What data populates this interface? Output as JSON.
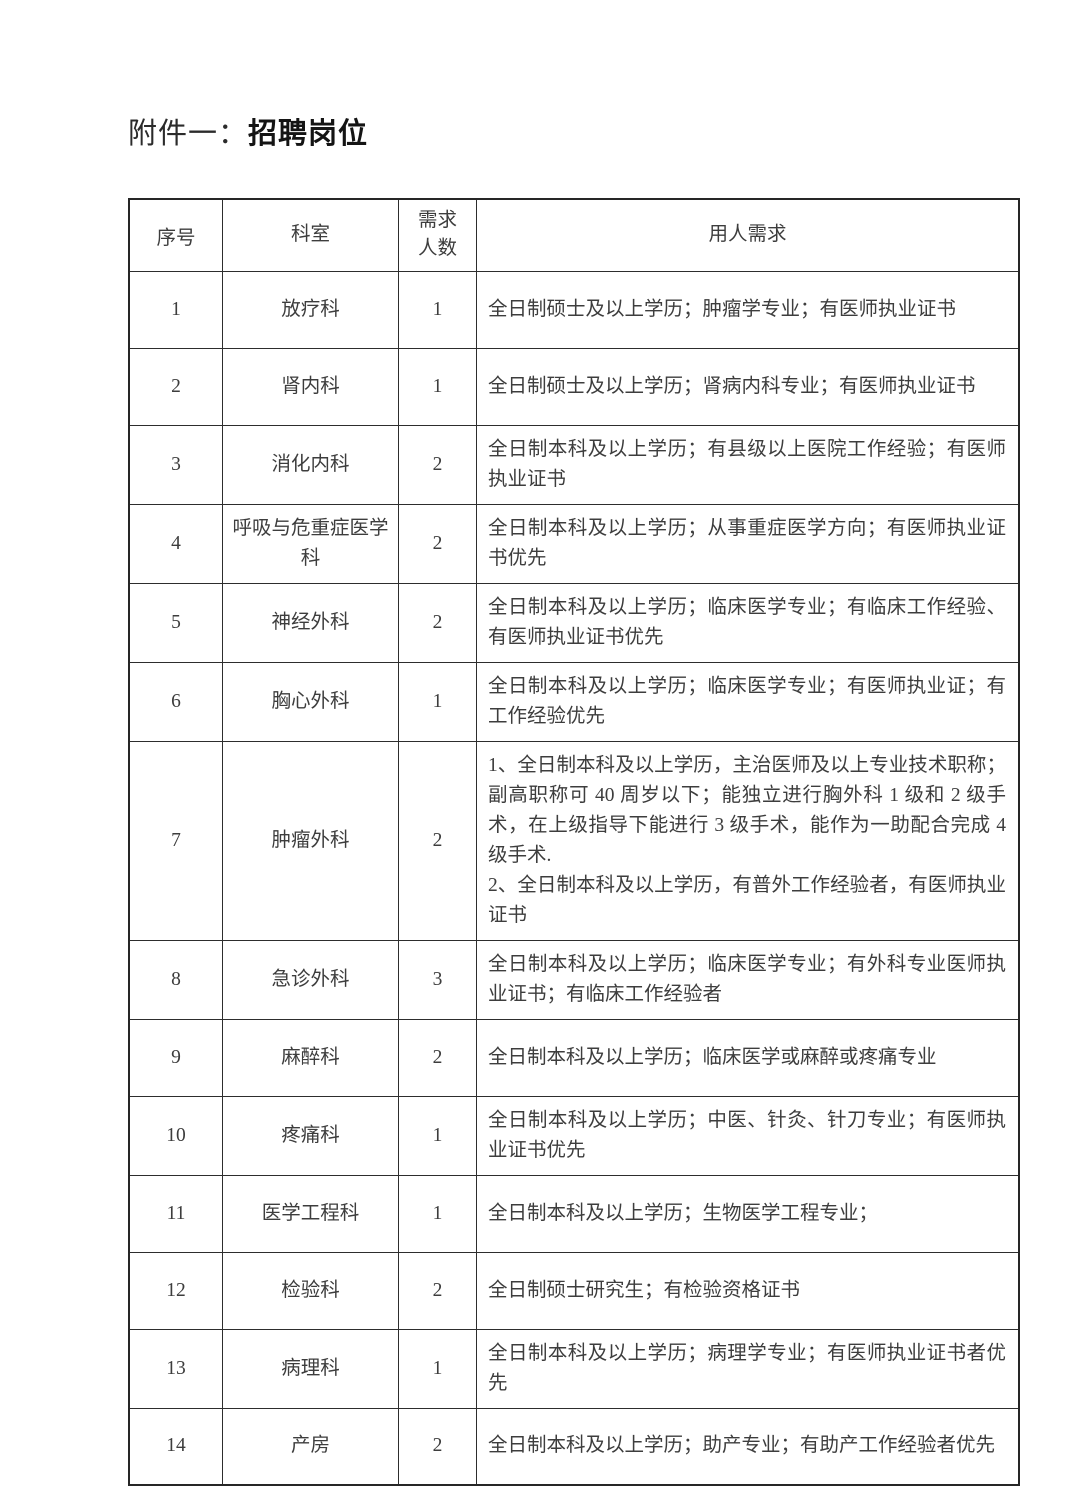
{
  "page": {
    "attachment_prefix": "附件一：",
    "title": "招聘岗位"
  },
  "table": {
    "headers": {
      "no": "序号",
      "dept": "科室",
      "count": "需求\n人数",
      "req": "用人需求"
    },
    "rows": [
      {
        "no": "1",
        "dept": "放疗科",
        "count": "1",
        "req": "全日制硕士及以上学历；肿瘤学专业；有医师执业证书"
      },
      {
        "no": "2",
        "dept": "肾内科",
        "count": "1",
        "req": "全日制硕士及以上学历；肾病内科专业；有医师执业证书"
      },
      {
        "no": "3",
        "dept": "消化内科",
        "count": "2",
        "req": "全日制本科及以上学历；有县级以上医院工作经验；有医师执业证书"
      },
      {
        "no": "4",
        "dept": "呼吸与危重症医学科",
        "count": "2",
        "req": "全日制本科及以上学历；从事重症医学方向；有医师执业证书优先"
      },
      {
        "no": "5",
        "dept": "神经外科",
        "count": "2",
        "req": "全日制本科及以上学历；临床医学专业；有临床工作经验、有医师执业证书优先"
      },
      {
        "no": "6",
        "dept": "胸心外科",
        "count": "1",
        "req": "全日制本科及以上学历；临床医学专业；有医师执业证；有工作经验优先"
      },
      {
        "no": "7",
        "dept": "肿瘤外科",
        "count": "2",
        "req": "1、全日制本科及以上学历，主治医师及以上专业技术职称；副高职称可 40 周岁以下；能独立进行胸外科 1 级和 2 级手术，在上级指导下能进行 3 级手术，能作为一助配合完成 4 级手术.\n2、全日制本科及以上学历，有普外工作经验者，有医师执业证书"
      },
      {
        "no": "8",
        "dept": "急诊外科",
        "count": "3",
        "req": "全日制本科及以上学历；临床医学专业；有外科专业医师执业证书；有临床工作经验者"
      },
      {
        "no": "9",
        "dept": "麻醉科",
        "count": "2",
        "req": "全日制本科及以上学历；临床医学或麻醉或疼痛专业"
      },
      {
        "no": "10",
        "dept": "疼痛科",
        "count": "1",
        "req": "全日制本科及以上学历；中医、针灸、针刀专业；有医师执业证书优先"
      },
      {
        "no": "11",
        "dept": "医学工程科",
        "count": "1",
        "req": "全日制本科及以上学历；生物医学工程专业；"
      },
      {
        "no": "12",
        "dept": "检验科",
        "count": "2",
        "req": "全日制硕士研究生；有检验资格证书"
      },
      {
        "no": "13",
        "dept": "病理科",
        "count": "1",
        "req": "全日制本科及以上学历；病理学专业；有医师执业证书者优先"
      },
      {
        "no": "14",
        "dept": "产房",
        "count": "2",
        "req": "全日制本科及以上学历；助产专业；有助产工作经验者优先"
      }
    ]
  }
}
